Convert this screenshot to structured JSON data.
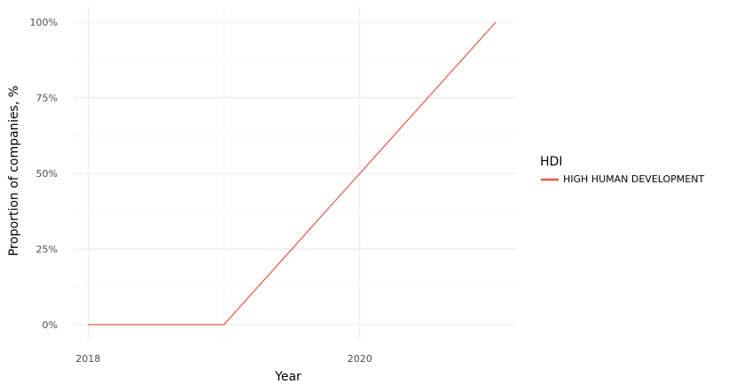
{
  "chart_data": {
    "type": "line",
    "xlabel": "Year",
    "ylabel": "Proportion of companies, %",
    "x_ticks": [
      2018,
      2020
    ],
    "y_ticks": [
      0,
      0.25,
      0.5,
      0.75,
      1.0
    ],
    "y_tick_labels": [
      "0%",
      "25%",
      "50%",
      "75%",
      "100%"
    ],
    "xlim": [
      2017.9,
      2021.15
    ],
    "ylim": [
      -0.05,
      1.05
    ],
    "grid": true,
    "legend": {
      "title": "HDI",
      "position": "right"
    },
    "series": [
      {
        "name": "HIGH HUMAN DEVELOPMENT",
        "color": "#E0584B",
        "x": [
          2018,
          2019,
          2020,
          2021
        ],
        "y": [
          0,
          0,
          0.5,
          1.0
        ]
      }
    ]
  }
}
